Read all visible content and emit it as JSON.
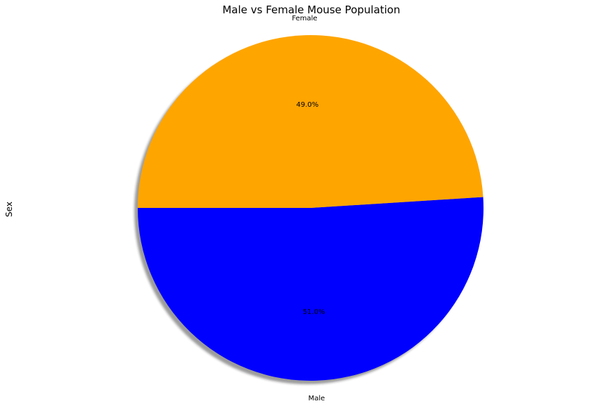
{
  "chart_data": {
    "type": "pie",
    "title": "Male vs Female Mouse Population",
    "ylabel": "Sex",
    "labels": [
      "Male",
      "Female"
    ],
    "values": [
      51.0,
      49.0
    ],
    "pct_labels": [
      "51.0%",
      "49.0%"
    ],
    "colors": [
      "#0000ff",
      "#ffa500"
    ],
    "start_angle_deg": 180,
    "shadow": true
  }
}
